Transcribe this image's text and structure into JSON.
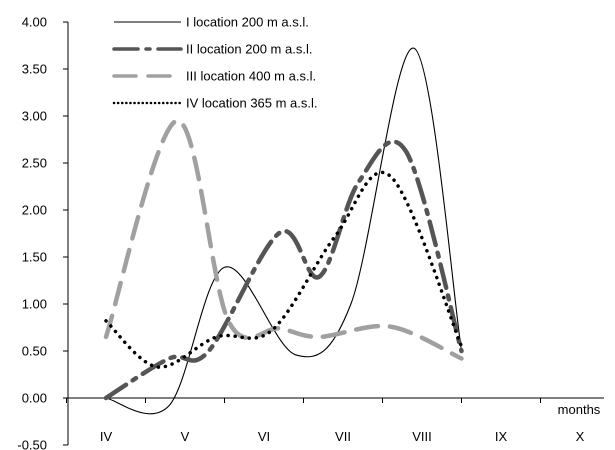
{
  "chart_data": {
    "type": "line",
    "title": "",
    "xlabel": "months",
    "ylabel": "",
    "categories": [
      "IV",
      "V",
      "VI",
      "VII",
      "VIII",
      "IX",
      "X"
    ],
    "ylim": [
      -0.5,
      4.0
    ],
    "yticks": [
      "-0.50",
      "0.00",
      "0.50",
      "1.00",
      "1.50",
      "2.00",
      "2.50",
      "3.00",
      "3.50",
      "4.00"
    ],
    "grid": false,
    "legend_position": "top",
    "series": [
      {
        "name": "I location 200 m a.s.l.",
        "style": "solid",
        "color": "#000000",
        "points": [
          [
            0,
            0.0
          ],
          [
            0.8,
            -0.08
          ],
          [
            1.5,
            1.39
          ],
          [
            2.4,
            0.46
          ],
          [
            3.1,
            1.0
          ],
          [
            3.9,
            3.72
          ],
          [
            4.5,
            0.5
          ]
        ]
      },
      {
        "name": "II location 200 m a.s.l.",
        "style": "dash-dot",
        "color": "#555555",
        "points": [
          [
            0,
            0.0
          ],
          [
            0.8,
            0.42
          ],
          [
            1.3,
            0.5
          ],
          [
            2.2,
            1.76
          ],
          [
            2.7,
            1.29
          ],
          [
            3.2,
            2.3
          ],
          [
            3.8,
            2.62
          ],
          [
            4.5,
            0.5
          ]
        ]
      },
      {
        "name": "III location 400 m a.s.l.",
        "style": "dashed",
        "color": "#a0a0a0",
        "points": [
          [
            0,
            0.65
          ],
          [
            0.9,
            2.95
          ],
          [
            1.55,
            0.82
          ],
          [
            2.2,
            0.74
          ],
          [
            2.7,
            0.65
          ],
          [
            3.6,
            0.76
          ],
          [
            4.5,
            0.42
          ]
        ]
      },
      {
        "name": "IV location 365 m a.s.l.",
        "style": "dotted",
        "color": "#000000",
        "points": [
          [
            0,
            0.82
          ],
          [
            0.65,
            0.33
          ],
          [
            1.4,
            0.65
          ],
          [
            2.1,
            0.72
          ],
          [
            2.9,
            1.72
          ],
          [
            3.6,
            2.36
          ],
          [
            4.5,
            0.55
          ]
        ]
      }
    ]
  }
}
